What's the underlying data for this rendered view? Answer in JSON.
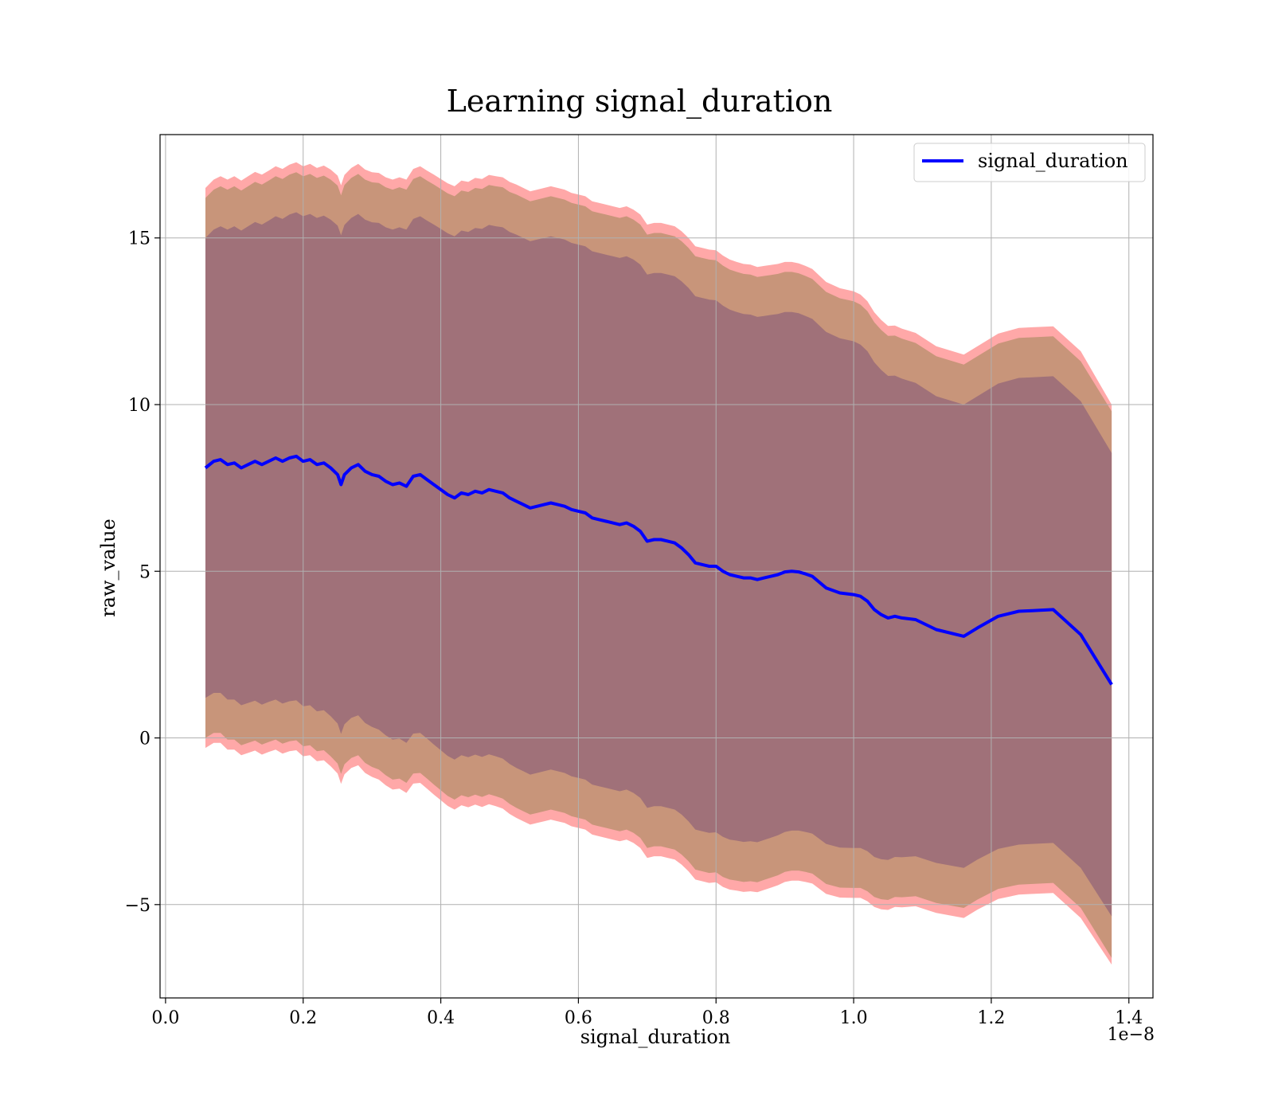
{
  "chart_data": {
    "type": "line",
    "title": "Learning signal_duration",
    "xlabel": "signal_duration",
    "ylabel": "raw_value",
    "x_offset_label": "1e−8",
    "xlim": [
      -0.008,
      1.435
    ],
    "ylim": [
      -7.8,
      18.1
    ],
    "x_ticks": [
      0.0,
      0.2,
      0.4,
      0.6,
      0.8,
      1.0,
      1.2,
      1.4
    ],
    "x_tick_labels": [
      "0.0",
      "0.2",
      "0.4",
      "0.6",
      "0.8",
      "1.0",
      "1.2",
      "1.4"
    ],
    "y_ticks": [
      -5,
      0,
      5,
      10,
      15
    ],
    "y_tick_labels": [
      "−5",
      "0",
      "5",
      "10",
      "15"
    ],
    "grid": true,
    "legend": {
      "position": "top-right",
      "entries": [
        "signal_duration"
      ]
    },
    "colors": {
      "line": "#0000ff",
      "outer_band": "#ff9999",
      "middle_band": "#c8957a",
      "inner_band": "#a07179",
      "grid": "#b0b0b0"
    },
    "series": [
      {
        "name": "signal_duration",
        "x": [
          0.058,
          0.07,
          0.08,
          0.09,
          0.1,
          0.11,
          0.12,
          0.13,
          0.14,
          0.15,
          0.16,
          0.17,
          0.18,
          0.19,
          0.2,
          0.21,
          0.22,
          0.23,
          0.24,
          0.25,
          0.255,
          0.26,
          0.27,
          0.28,
          0.29,
          0.3,
          0.31,
          0.32,
          0.33,
          0.34,
          0.35,
          0.36,
          0.37,
          0.38,
          0.39,
          0.4,
          0.41,
          0.42,
          0.43,
          0.44,
          0.45,
          0.46,
          0.47,
          0.48,
          0.49,
          0.5,
          0.51,
          0.52,
          0.53,
          0.54,
          0.55,
          0.56,
          0.57,
          0.58,
          0.59,
          0.6,
          0.61,
          0.62,
          0.63,
          0.64,
          0.65,
          0.66,
          0.67,
          0.68,
          0.69,
          0.7,
          0.71,
          0.72,
          0.73,
          0.74,
          0.75,
          0.76,
          0.77,
          0.78,
          0.79,
          0.8,
          0.81,
          0.82,
          0.83,
          0.84,
          0.85,
          0.86,
          0.87,
          0.88,
          0.89,
          0.9,
          0.91,
          0.92,
          0.93,
          0.94,
          0.96,
          0.98,
          1.0,
          1.01,
          1.02,
          1.03,
          1.04,
          1.05,
          1.06,
          1.07,
          1.09,
          1.12,
          1.16,
          1.18,
          1.21,
          1.24,
          1.26,
          1.29,
          1.33,
          1.375
        ],
        "values": [
          8.1,
          8.3,
          8.35,
          8.2,
          8.25,
          8.1,
          8.2,
          8.3,
          8.2,
          8.3,
          8.4,
          8.3,
          8.4,
          8.45,
          8.3,
          8.35,
          8.2,
          8.25,
          8.1,
          7.9,
          7.6,
          7.9,
          8.1,
          8.2,
          8.0,
          7.9,
          7.85,
          7.7,
          7.6,
          7.65,
          7.55,
          7.85,
          7.9,
          7.75,
          7.6,
          7.45,
          7.3,
          7.2,
          7.35,
          7.3,
          7.4,
          7.35,
          7.45,
          7.4,
          7.35,
          7.2,
          7.1,
          7.0,
          6.9,
          6.95,
          7.0,
          7.05,
          7.0,
          6.95,
          6.85,
          6.8,
          6.75,
          6.6,
          6.55,
          6.5,
          6.45,
          6.4,
          6.45,
          6.35,
          6.2,
          5.9,
          5.95,
          5.95,
          5.9,
          5.85,
          5.7,
          5.5,
          5.25,
          5.2,
          5.15,
          5.15,
          5.0,
          4.9,
          4.85,
          4.8,
          4.8,
          4.75,
          4.8,
          4.85,
          4.9,
          4.98,
          5.0,
          4.98,
          4.92,
          4.85,
          4.5,
          4.35,
          4.3,
          4.25,
          4.1,
          3.85,
          3.7,
          3.6,
          3.65,
          3.6,
          3.55,
          3.25,
          3.05,
          3.3,
          3.65,
          3.8,
          3.82,
          3.85,
          3.1,
          1.6
        ],
        "band_inner_half_width": [
          6.9,
          6.95,
          7.0,
          7.05,
          7.1,
          7.12,
          7.15,
          7.18,
          7.2,
          7.22,
          7.25,
          7.27,
          7.3,
          7.32,
          7.35,
          7.37,
          7.4,
          7.42,
          7.45,
          7.47,
          7.48,
          7.49,
          7.5,
          7.52,
          7.55,
          7.57,
          7.6,
          7.62,
          7.65,
          7.67,
          7.7,
          7.72,
          7.75,
          7.77,
          7.8,
          7.82,
          7.84,
          7.85,
          7.87,
          7.88,
          7.9,
          7.92,
          7.94,
          7.95,
          7.97,
          7.98,
          8.0,
          8.0,
          8.0,
          8.0,
          8.0,
          8.0,
          8.0,
          8.0,
          8.0,
          8.0,
          8.0,
          8.0,
          8.0,
          8.0,
          8.0,
          8.0,
          8.0,
          8.0,
          8.0,
          8.0,
          8.0,
          8.0,
          8.0,
          8.0,
          8.0,
          8.0,
          8.0,
          8.0,
          8.0,
          7.98,
          7.97,
          7.95,
          7.93,
          7.92,
          7.9,
          7.88,
          7.86,
          7.84,
          7.82,
          7.8,
          7.78,
          7.76,
          7.74,
          7.72,
          7.68,
          7.64,
          7.6,
          7.55,
          7.5,
          7.42,
          7.34,
          7.26,
          7.22,
          7.18,
          7.1,
          7.0,
          6.95,
          6.95,
          6.98,
          7.0,
          7.0,
          7.0,
          7.0,
          6.95
        ],
        "band_middle_half_width": [
          8.1,
          8.15,
          8.2,
          8.25,
          8.3,
          8.32,
          8.35,
          8.38,
          8.4,
          8.42,
          8.45,
          8.47,
          8.5,
          8.52,
          8.55,
          8.57,
          8.6,
          8.62,
          8.65,
          8.67,
          8.68,
          8.69,
          8.7,
          8.72,
          8.75,
          8.77,
          8.8,
          8.82,
          8.85,
          8.87,
          8.9,
          8.92,
          8.95,
          8.97,
          9.0,
          9.02,
          9.04,
          9.05,
          9.07,
          9.08,
          9.1,
          9.12,
          9.14,
          9.15,
          9.17,
          9.18,
          9.2,
          9.2,
          9.2,
          9.2,
          9.2,
          9.2,
          9.2,
          9.2,
          9.2,
          9.2,
          9.2,
          9.2,
          9.2,
          9.2,
          9.2,
          9.2,
          9.2,
          9.2,
          9.2,
          9.2,
          9.2,
          9.2,
          9.2,
          9.2,
          9.2,
          9.2,
          9.2,
          9.2,
          9.2,
          9.18,
          9.17,
          9.15,
          9.13,
          9.12,
          9.1,
          9.08,
          9.06,
          9.04,
          9.02,
          9.0,
          8.98,
          8.96,
          8.94,
          8.92,
          8.88,
          8.84,
          8.8,
          8.75,
          8.7,
          8.62,
          8.54,
          8.46,
          8.42,
          8.38,
          8.3,
          8.2,
          8.15,
          8.15,
          8.18,
          8.2,
          8.2,
          8.2,
          8.2,
          8.2
        ],
        "band_outer_half_width": [
          8.4,
          8.45,
          8.5,
          8.55,
          8.6,
          8.62,
          8.65,
          8.68,
          8.7,
          8.72,
          8.75,
          8.77,
          8.8,
          8.82,
          8.85,
          8.87,
          8.9,
          8.92,
          8.95,
          8.97,
          8.98,
          8.99,
          9.0,
          9.02,
          9.05,
          9.07,
          9.1,
          9.12,
          9.15,
          9.17,
          9.2,
          9.22,
          9.25,
          9.27,
          9.3,
          9.32,
          9.34,
          9.35,
          9.37,
          9.38,
          9.4,
          9.42,
          9.44,
          9.45,
          9.47,
          9.48,
          9.5,
          9.5,
          9.5,
          9.5,
          9.5,
          9.5,
          9.5,
          9.5,
          9.5,
          9.5,
          9.5,
          9.5,
          9.5,
          9.5,
          9.5,
          9.5,
          9.5,
          9.5,
          9.5,
          9.5,
          9.5,
          9.5,
          9.5,
          9.5,
          9.5,
          9.5,
          9.5,
          9.5,
          9.5,
          9.48,
          9.47,
          9.45,
          9.43,
          9.42,
          9.4,
          9.38,
          9.36,
          9.34,
          9.32,
          9.3,
          9.28,
          9.26,
          9.24,
          9.22,
          9.18,
          9.14,
          9.1,
          9.05,
          9.0,
          8.92,
          8.84,
          8.76,
          8.72,
          8.68,
          8.6,
          8.5,
          8.45,
          8.45,
          8.48,
          8.5,
          8.5,
          8.5,
          8.5,
          8.4
        ]
      }
    ]
  }
}
